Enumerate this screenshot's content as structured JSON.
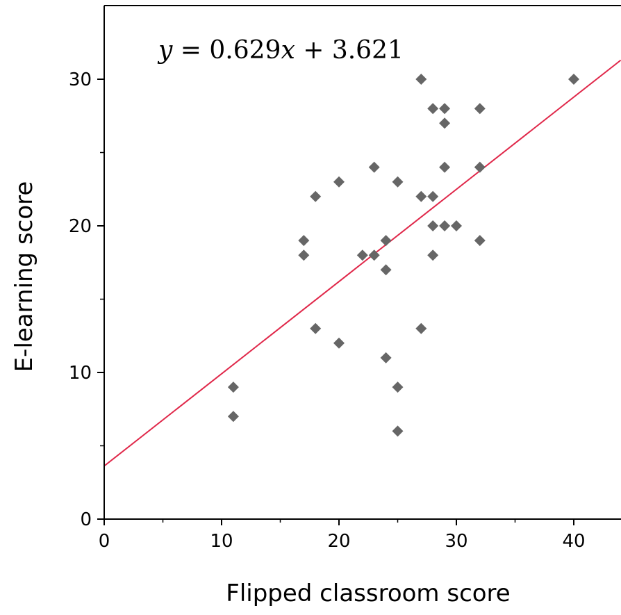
{
  "chart_data": {
    "type": "scatter",
    "title": "",
    "xlabel": "Flipped classroom score",
    "ylabel": "E-learning score",
    "xlim": [
      0,
      44
    ],
    "ylim": [
      0,
      35
    ],
    "x_ticks": [
      0,
      10,
      20,
      30,
      40
    ],
    "y_ticks": [
      0,
      10,
      20,
      30
    ],
    "grid": false,
    "legend": "none",
    "colors": {
      "points": "#666666",
      "trendline": "#e0284a",
      "axis": "#000000"
    },
    "annotation": {
      "lhs": "y",
      "eq": " = 0.629",
      "x": "x",
      "rest": " + 3.621"
    },
    "trendline": {
      "slope": 0.629,
      "intercept": 3.621
    },
    "points": [
      {
        "x": 11,
        "y": 9
      },
      {
        "x": 11,
        "y": 7
      },
      {
        "x": 17,
        "y": 19
      },
      {
        "x": 17,
        "y": 18
      },
      {
        "x": 18,
        "y": 22
      },
      {
        "x": 18,
        "y": 13
      },
      {
        "x": 20,
        "y": 23
      },
      {
        "x": 20,
        "y": 12
      },
      {
        "x": 22,
        "y": 18
      },
      {
        "x": 23,
        "y": 24
      },
      {
        "x": 23,
        "y": 18
      },
      {
        "x": 24,
        "y": 19
      },
      {
        "x": 24,
        "y": 17
      },
      {
        "x": 24,
        "y": 11
      },
      {
        "x": 25,
        "y": 23
      },
      {
        "x": 25,
        "y": 9
      },
      {
        "x": 25,
        "y": 6
      },
      {
        "x": 27,
        "y": 30
      },
      {
        "x": 27,
        "y": 22
      },
      {
        "x": 27,
        "y": 13
      },
      {
        "x": 28,
        "y": 28
      },
      {
        "x": 28,
        "y": 22
      },
      {
        "x": 28,
        "y": 20
      },
      {
        "x": 28,
        "y": 18
      },
      {
        "x": 29,
        "y": 28
      },
      {
        "x": 29,
        "y": 27
      },
      {
        "x": 29,
        "y": 24
      },
      {
        "x": 29,
        "y": 20
      },
      {
        "x": 30,
        "y": 20
      },
      {
        "x": 32,
        "y": 28
      },
      {
        "x": 32,
        "y": 24
      },
      {
        "x": 32,
        "y": 19
      },
      {
        "x": 40,
        "y": 30
      }
    ]
  }
}
